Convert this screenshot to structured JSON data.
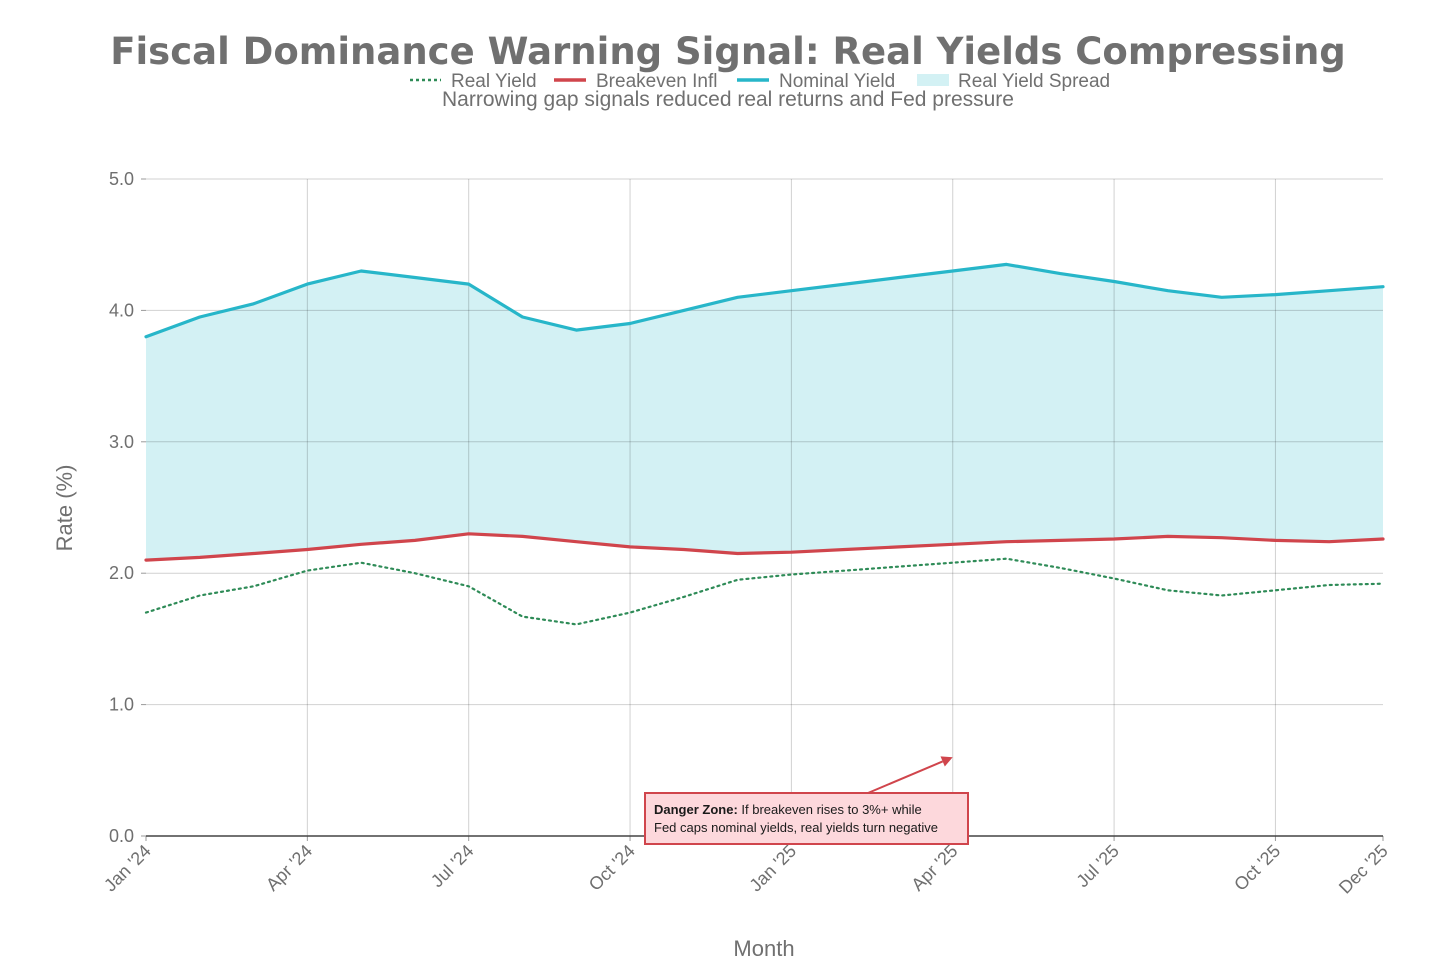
{
  "chart_data": {
    "type": "line",
    "title": "Fiscal Dominance Warning Signal: Real Yields Compressing",
    "subtitle": "Narrowing gap signals reduced real returns and Fed pressure",
    "xlabel": "Month",
    "ylabel": "Rate (%)",
    "ylim": [
      0,
      5
    ],
    "yticks": [
      "0.0",
      "1.0",
      "2.0",
      "3.0",
      "4.0",
      "5.0"
    ],
    "grid": true,
    "legend_position": "top-center",
    "x": [
      "2024-01",
      "2024-02",
      "2024-03",
      "2024-04",
      "2024-05",
      "2024-06",
      "2024-07",
      "2024-08",
      "2024-09",
      "2024-10",
      "2024-11",
      "2024-12",
      "2025-01",
      "2025-02",
      "2025-03",
      "2025-04",
      "2025-05",
      "2025-06",
      "2025-07",
      "2025-08",
      "2025-09",
      "2025-10",
      "2025-11",
      "2025-12"
    ],
    "xticks": [
      {
        "label": "Jan '24",
        "at": "2024-01"
      },
      {
        "label": "Apr '24",
        "at": "2024-04"
      },
      {
        "label": "Jul '24",
        "at": "2024-07"
      },
      {
        "label": "Oct '24",
        "at": "2024-10"
      },
      {
        "label": "Jan '25",
        "at": "2025-01"
      },
      {
        "label": "Apr '25",
        "at": "2025-04"
      },
      {
        "label": "Jul '25",
        "at": "2025-07"
      },
      {
        "label": "Oct '25",
        "at": "2025-10"
      },
      {
        "label": "Dec '25",
        "at": "2025-12"
      }
    ],
    "series": [
      {
        "name": "Real Yield",
        "style": "dotted",
        "color": "#2e8b57",
        "values": [
          1.7,
          1.83,
          1.9,
          2.02,
          2.08,
          2.0,
          1.9,
          1.67,
          1.61,
          1.7,
          1.82,
          1.95,
          1.99,
          2.02,
          2.05,
          2.08,
          2.11,
          2.04,
          1.96,
          1.87,
          1.83,
          1.87,
          1.91,
          1.92
        ]
      },
      {
        "name": "Breakeven Infl",
        "style": "solid",
        "color": "#d0454c",
        "values": [
          2.1,
          2.12,
          2.15,
          2.18,
          2.22,
          2.25,
          2.3,
          2.28,
          2.24,
          2.2,
          2.18,
          2.15,
          2.16,
          2.18,
          2.2,
          2.22,
          2.24,
          2.25,
          2.26,
          2.28,
          2.27,
          2.25,
          2.24,
          2.26
        ]
      },
      {
        "name": "Nominal Yield",
        "style": "solid",
        "color": "#27b6c9",
        "values": [
          3.8,
          3.95,
          4.05,
          4.2,
          4.3,
          4.25,
          4.2,
          3.95,
          3.85,
          3.9,
          4.0,
          4.1,
          4.15,
          4.2,
          4.25,
          4.3,
          4.35,
          4.28,
          4.22,
          4.15,
          4.1,
          4.12,
          4.15,
          4.18
        ]
      }
    ],
    "band": {
      "name": "Real Yield Spread",
      "color": "#d3f1f4",
      "lower": "Breakeven Infl",
      "upper": "Nominal Yield"
    },
    "annotation": {
      "bold": "Danger Zone:",
      "line1": "If breakeven rises to 3%+ while",
      "line2": "Fed caps nominal yields, real yields turn negative",
      "arrow_target": {
        "x": "2025-04",
        "y": 0.6
      },
      "border_color": "#d0454c",
      "fill_color": "#fdd8dc"
    }
  }
}
